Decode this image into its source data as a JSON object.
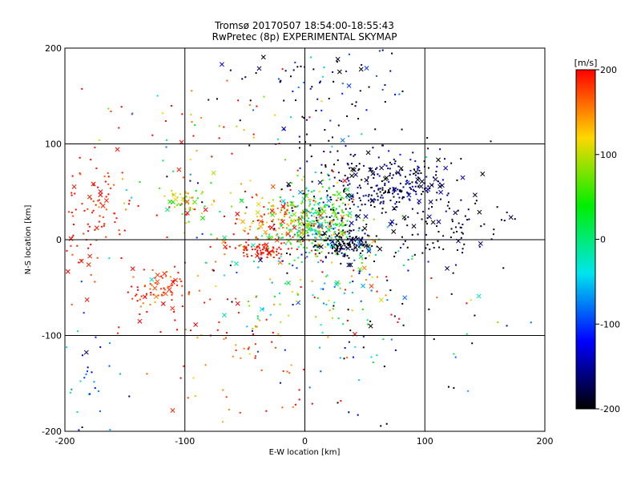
{
  "chart_data": {
    "type": "scatter",
    "title": "Tromsø 20170507 18:54:00-18:55:43",
    "subtitle": "RwPretec (8p) EXPERIMENTAL SKYMAP",
    "xlabel": "E-W location [km]",
    "ylabel": "N-S location [km]",
    "xlim": [
      -200,
      200
    ],
    "ylim": [
      -200,
      200
    ],
    "x_ticks": [
      "-200",
      "-100",
      "0",
      "100",
      "200"
    ],
    "y_ticks": [
      "-200",
      "-100",
      "0",
      "100",
      "200"
    ],
    "grid": true,
    "colorbar": {
      "unit": "[m/s]",
      "range": [
        -200,
        200
      ],
      "ticks": [
        "200",
        "100",
        "0",
        "-100",
        "-200"
      ],
      "palette": [
        "#ff0000",
        "#ffd700",
        "#00ee00",
        "#00e5ee",
        "#0000ff",
        "#000000"
      ]
    },
    "marker_types": [
      "dot",
      "cross"
    ],
    "clusters": [
      {
        "x": 10,
        "y": 20,
        "sx": 18,
        "sy": 18,
        "n": 320,
        "v": 20,
        "vs": 60
      },
      {
        "x": -20,
        "y": 20,
        "sx": 25,
        "sy": 15,
        "n": 160,
        "v": 150,
        "vs": 50
      },
      {
        "x": 40,
        "y": 40,
        "sx": 25,
        "sy": 35,
        "n": 160,
        "v": -180,
        "vs": 30
      },
      {
        "x": 80,
        "y": 60,
        "sx": 20,
        "sy": 15,
        "n": 170,
        "v": -170,
        "vs": 30
      },
      {
        "x": 30,
        "y": -5,
        "sx": 15,
        "sy": 8,
        "n": 120,
        "v": -190,
        "vs": 20
      },
      {
        "x": -35,
        "y": -10,
        "sx": 12,
        "sy": 5,
        "n": 80,
        "v": 195,
        "vs": 10
      },
      {
        "x": -120,
        "y": -50,
        "sx": 15,
        "sy": 15,
        "n": 80,
        "v": 185,
        "vs": 20
      },
      {
        "x": -180,
        "y": 30,
        "sx": 18,
        "sy": 35,
        "n": 110,
        "v": 190,
        "vs": 15
      },
      {
        "x": -100,
        "y": 40,
        "sx": 8,
        "sy": 8,
        "n": 50,
        "v": 90,
        "vs": 60
      },
      {
        "x": 20,
        "y": 160,
        "sx": 30,
        "sy": 30,
        "n": 90,
        "v": -150,
        "vs": 60
      },
      {
        "x": 120,
        "y": 20,
        "sx": 25,
        "sy": 25,
        "n": 100,
        "v": -185,
        "vs": 20
      },
      {
        "x": -60,
        "y": -120,
        "sx": 40,
        "sy": 40,
        "n": 70,
        "v": 180,
        "vs": 30
      },
      {
        "x": -185,
        "y": -140,
        "sx": 15,
        "sy": 40,
        "n": 40,
        "v": -90,
        "vs": 50
      },
      {
        "x": 0,
        "y": -40,
        "sx": 60,
        "sy": 40,
        "n": 180,
        "v": 50,
        "vs": 150
      },
      {
        "x": -80,
        "y": 100,
        "sx": 50,
        "sy": 40,
        "n": 80,
        "v": 100,
        "vs": 130
      },
      {
        "x": 60,
        "y": -80,
        "sx": 50,
        "sy": 60,
        "n": 70,
        "v": -120,
        "vs": 100
      }
    ]
  }
}
